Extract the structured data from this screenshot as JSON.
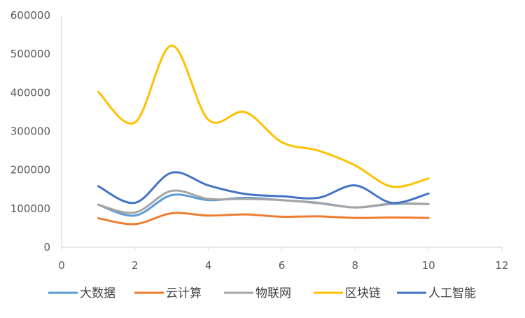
{
  "chart_data": {
    "type": "line",
    "title": "",
    "xlabel": "",
    "ylabel": "",
    "xlim": [
      0,
      12
    ],
    "ylim": [
      0,
      600000
    ],
    "x_ticks": [
      "0",
      "2",
      "4",
      "6",
      "8",
      "10",
      "12"
    ],
    "y_ticks": [
      "0",
      "100000",
      "200000",
      "300000",
      "400000",
      "500000",
      "600000"
    ],
    "grid": false,
    "legend_position": "bottom",
    "smooth": true,
    "x": [
      1,
      2,
      3,
      4,
      5,
      6,
      7,
      8,
      9,
      10
    ],
    "series": [
      {
        "name": "大数据",
        "color": "#5B9BD5",
        "values": [
          110000,
          82000,
          135000,
          122000,
          128000,
          122000,
          115000,
          103000,
          112000,
          112000
        ]
      },
      {
        "name": "云计算",
        "color": "#ED7D31",
        "values": [
          75000,
          60000,
          88000,
          82000,
          85000,
          79000,
          80000,
          76000,
          77000,
          76000
        ]
      },
      {
        "name": "物联网",
        "color": "#A5A5A5",
        "values": [
          110000,
          90000,
          146000,
          125000,
          125000,
          122000,
          114000,
          103000,
          113000,
          112000
        ]
      },
      {
        "name": "区块链",
        "color": "#FFC000",
        "values": [
          402000,
          323000,
          522000,
          330000,
          350000,
          272000,
          250000,
          212000,
          157000,
          178000
        ]
      },
      {
        "name": "人工智能",
        "color": "#4472C4",
        "values": [
          158000,
          115000,
          193000,
          160000,
          138000,
          132000,
          128000,
          160000,
          115000,
          139000
        ]
      }
    ]
  }
}
